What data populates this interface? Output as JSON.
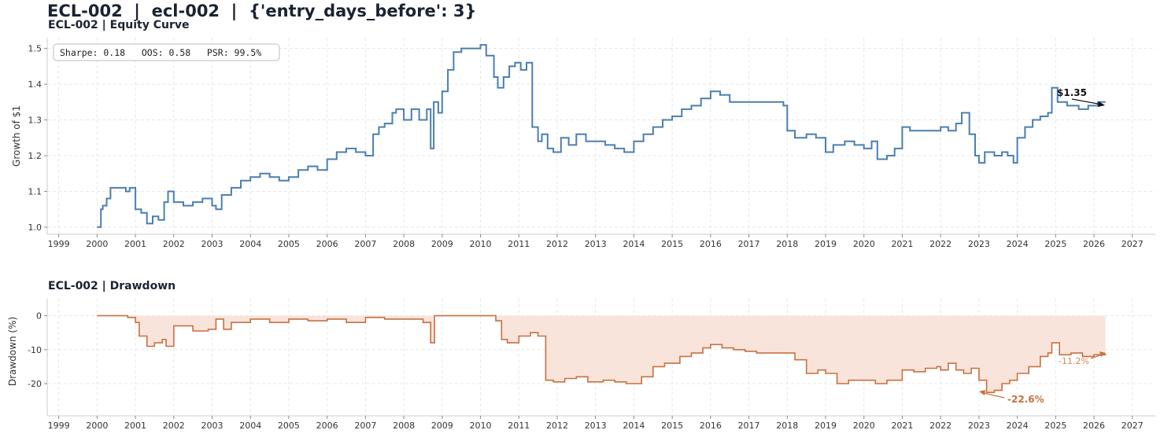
{
  "page_title": "ECL-002  |  ecl-002  |  {'entry_days_before': 3}",
  "chart_data": [
    {
      "type": "line",
      "title": "ECL-002 | Equity Curve",
      "xlabel": "",
      "ylabel": "Growth of $1",
      "xlim": [
        1998.7,
        2027.6
      ],
      "ylim": [
        0.98,
        1.53
      ],
      "grid": true,
      "x_ticks": [
        "1999",
        "2000",
        "2001",
        "2002",
        "2003",
        "2004",
        "2005",
        "2006",
        "2007",
        "2008",
        "2009",
        "2010",
        "2011",
        "2012",
        "2013",
        "2014",
        "2015",
        "2016",
        "2017",
        "2018",
        "2019",
        "2020",
        "2021",
        "2022",
        "2023",
        "2024",
        "2025",
        "2026",
        "2027"
      ],
      "y_ticks": [
        "1.0",
        "1.1",
        "1.2",
        "1.3",
        "1.4",
        "1.5"
      ],
      "stats_box": "Sharpe: 0.18   OOS: 0.58   PSR: 99.5%",
      "end_label": "$1.35",
      "color": "#4a7fb0",
      "series": [
        {
          "name": "Equity",
          "x": [
            2000.0,
            2000.1,
            2000.15,
            2000.25,
            2000.35,
            2000.6,
            2000.75,
            2000.85,
            2001.0,
            2001.15,
            2001.3,
            2001.45,
            2001.6,
            2001.75,
            2001.85,
            2002.0,
            2002.25,
            2002.5,
            2002.75,
            2003.0,
            2003.1,
            2003.25,
            2003.5,
            2003.75,
            2004.0,
            2004.25,
            2004.5,
            2004.75,
            2005.0,
            2005.25,
            2005.5,
            2005.75,
            2006.0,
            2006.25,
            2006.5,
            2006.75,
            2007.0,
            2007.2,
            2007.35,
            2007.5,
            2007.7,
            2007.8,
            2008.0,
            2008.2,
            2008.4,
            2008.6,
            2008.7,
            2008.78,
            2008.9,
            2009.0,
            2009.15,
            2009.3,
            2009.5,
            2009.75,
            2010.0,
            2010.15,
            2010.35,
            2010.45,
            2010.6,
            2010.75,
            2010.9,
            2011.05,
            2011.2,
            2011.35,
            2011.5,
            2011.6,
            2011.75,
            2011.9,
            2012.1,
            2012.3,
            2012.5,
            2012.75,
            2013.0,
            2013.25,
            2013.5,
            2013.75,
            2014.0,
            2014.25,
            2014.5,
            2014.75,
            2015.0,
            2015.25,
            2015.5,
            2015.75,
            2016.0,
            2016.25,
            2016.5,
            2016.75,
            2017.0,
            2017.3,
            2017.6,
            2017.9,
            2018.0,
            2018.2,
            2018.5,
            2018.75,
            2019.0,
            2019.2,
            2019.5,
            2019.75,
            2020.0,
            2020.2,
            2020.35,
            2020.6,
            2020.8,
            2021.0,
            2021.2,
            2021.5,
            2021.75,
            2022.0,
            2022.2,
            2022.4,
            2022.55,
            2022.75,
            2022.9,
            2023.0,
            2023.15,
            2023.4,
            2023.6,
            2023.75,
            2023.9,
            2024.0,
            2024.2,
            2024.4,
            2024.6,
            2024.8,
            2024.9,
            2025.05,
            2025.3,
            2025.6,
            2025.85,
            2026.1,
            2026.3
          ],
          "values": [
            1.0,
            1.05,
            1.06,
            1.08,
            1.11,
            1.11,
            1.1,
            1.11,
            1.05,
            1.04,
            1.01,
            1.03,
            1.02,
            1.07,
            1.1,
            1.07,
            1.06,
            1.07,
            1.08,
            1.06,
            1.05,
            1.09,
            1.11,
            1.13,
            1.14,
            1.15,
            1.14,
            1.13,
            1.14,
            1.16,
            1.17,
            1.16,
            1.19,
            1.21,
            1.22,
            1.21,
            1.2,
            1.26,
            1.28,
            1.29,
            1.32,
            1.33,
            1.3,
            1.33,
            1.3,
            1.33,
            1.22,
            1.35,
            1.32,
            1.38,
            1.44,
            1.49,
            1.5,
            1.5,
            1.51,
            1.48,
            1.42,
            1.39,
            1.42,
            1.45,
            1.46,
            1.44,
            1.46,
            1.28,
            1.24,
            1.26,
            1.22,
            1.21,
            1.25,
            1.23,
            1.26,
            1.24,
            1.24,
            1.23,
            1.22,
            1.21,
            1.24,
            1.26,
            1.28,
            1.3,
            1.31,
            1.33,
            1.34,
            1.36,
            1.38,
            1.37,
            1.35,
            1.35,
            1.35,
            1.35,
            1.35,
            1.34,
            1.27,
            1.25,
            1.26,
            1.25,
            1.21,
            1.23,
            1.24,
            1.23,
            1.22,
            1.24,
            1.19,
            1.2,
            1.22,
            1.28,
            1.27,
            1.27,
            1.27,
            1.28,
            1.27,
            1.29,
            1.32,
            1.26,
            1.2,
            1.18,
            1.21,
            1.2,
            1.21,
            1.2,
            1.18,
            1.25,
            1.28,
            1.3,
            1.31,
            1.32,
            1.39,
            1.35,
            1.34,
            1.33,
            1.34,
            1.35,
            1.35
          ]
        }
      ]
    },
    {
      "type": "area",
      "title": "ECL-002 | Drawdown",
      "xlabel": "",
      "ylabel": "Drawdown (%)",
      "xlim": [
        1998.7,
        2027.6
      ],
      "ylim": [
        -29.5,
        5
      ],
      "grid": true,
      "x_ticks": [
        "1999",
        "2000",
        "2001",
        "2002",
        "2003",
        "2004",
        "2005",
        "2006",
        "2007",
        "2008",
        "2009",
        "2010",
        "2011",
        "2012",
        "2013",
        "2014",
        "2015",
        "2016",
        "2017",
        "2018",
        "2019",
        "2020",
        "2021",
        "2022",
        "2023",
        "2024",
        "2025",
        "2026",
        "2027"
      ],
      "y_ticks": [
        "0",
        "-10",
        "-20"
      ],
      "min_label": "-22.6%",
      "end_label": "-11.2%",
      "color": "#c8703f",
      "fill_color": "#f9e4dc",
      "series": [
        {
          "name": "Drawdown",
          "x": [
            2000.0,
            2000.6,
            2000.8,
            2001.0,
            2001.1,
            2001.3,
            2001.5,
            2001.7,
            2001.8,
            2002.0,
            2002.5,
            2002.9,
            2003.1,
            2003.3,
            2003.5,
            2004.0,
            2004.5,
            2005.0,
            2005.5,
            2006.0,
            2006.5,
            2007.0,
            2007.5,
            2008.0,
            2008.5,
            2008.7,
            2008.8,
            2009.0,
            2009.5,
            2010.0,
            2010.4,
            2010.55,
            2010.7,
            2011.0,
            2011.3,
            2011.5,
            2011.7,
            2011.9,
            2012.2,
            2012.5,
            2012.8,
            2013.2,
            2013.5,
            2013.8,
            2014.2,
            2014.5,
            2014.8,
            2015.2,
            2015.5,
            2015.8,
            2016.0,
            2016.3,
            2016.6,
            2016.9,
            2017.2,
            2017.6,
            2018.0,
            2018.2,
            2018.5,
            2018.8,
            2019.0,
            2019.3,
            2019.6,
            2020.0,
            2020.3,
            2020.6,
            2021.0,
            2021.3,
            2021.6,
            2021.9,
            2022.0,
            2022.2,
            2022.4,
            2022.6,
            2022.8,
            2023.0,
            2023.2,
            2023.4,
            2023.6,
            2023.8,
            2024.0,
            2024.3,
            2024.6,
            2024.8,
            2024.9,
            2025.1,
            2025.4,
            2025.7,
            2026.0,
            2026.3
          ],
          "values": [
            0,
            0,
            -0.5,
            -2,
            -6,
            -9,
            -8,
            -7,
            -9,
            -3,
            -4.5,
            -4,
            -1,
            -4,
            -2,
            -1,
            -2,
            -1,
            -1.5,
            -1,
            -2,
            -0.5,
            -1,
            -1,
            -2,
            -8,
            0,
            0,
            0,
            0,
            -1.5,
            -7,
            -8,
            -6,
            -5,
            -6,
            -19,
            -19.5,
            -18.5,
            -18,
            -19.5,
            -19,
            -19.5,
            -20,
            -18,
            -15,
            -14,
            -12,
            -11,
            -9.5,
            -8.5,
            -9.5,
            -10,
            -10.5,
            -11,
            -11,
            -11,
            -13,
            -17,
            -16,
            -17,
            -20,
            -19,
            -19,
            -20,
            -19,
            -16,
            -16.5,
            -15.5,
            -15,
            -16,
            -14,
            -16,
            -17,
            -15.5,
            -19,
            -22.6,
            -22,
            -20,
            -19,
            -17,
            -15,
            -12,
            -11,
            -8,
            -11.5,
            -11,
            -12,
            -11.5,
            -11.2
          ]
        }
      ]
    }
  ]
}
